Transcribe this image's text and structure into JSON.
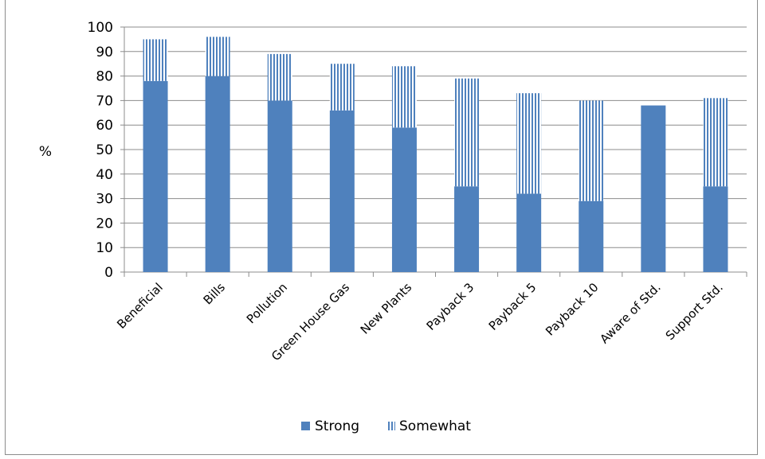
{
  "chart_data": {
    "type": "bar",
    "stacked": true,
    "title": "",
    "xlabel": "",
    "ylabel": "%",
    "ylim": [
      0,
      100
    ],
    "yticks": [
      0,
      10,
      20,
      30,
      40,
      50,
      60,
      70,
      80,
      90,
      100
    ],
    "grid": true,
    "legend_position": "bottom",
    "categories": [
      "Beneficial",
      "Bills",
      "Pollution",
      "Green House Gas",
      "New Plants",
      "Payback 3",
      "Payback 5",
      "Payback 10",
      "Aware of Std.",
      "Support Std."
    ],
    "series": [
      {
        "name": "Strong",
        "color": "#4f81bd",
        "pattern": "solid",
        "values": [
          78,
          80,
          70,
          66,
          59,
          35,
          32,
          29,
          68,
          35
        ]
      },
      {
        "name": "Somewhat",
        "color": "#4f81bd",
        "pattern": "vertical-stripes",
        "values": [
          17,
          16,
          19,
          19,
          25,
          44,
          41,
          41,
          0,
          36
        ]
      }
    ]
  }
}
